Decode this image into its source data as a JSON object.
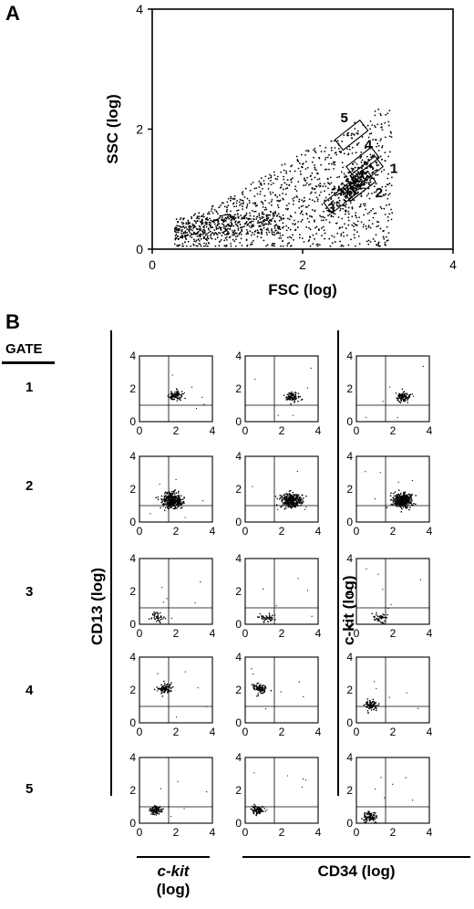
{
  "panel_a_label": "A",
  "panel_b_label": "B",
  "gate_header": "GATE",
  "gates": [
    "1",
    "2",
    "3",
    "4",
    "5"
  ],
  "ylabel_left": "CD13 (log)",
  "ylabel_right": "c-kit (log)",
  "xlabel_ckit_line1": "c-kit",
  "xlabel_ckit_line2": "(log)",
  "xlabel_cd34": "CD34 (log)",
  "chart_data": [
    {
      "type": "scatter",
      "panel": "A",
      "xlabel": "FSC (log)",
      "ylabel": "SSC (log)",
      "xlim": [
        0,
        4
      ],
      "ylim": [
        0,
        4
      ],
      "xticks": [
        "0",
        "2",
        "4"
      ],
      "yticks": [
        "0",
        "2",
        "4"
      ],
      "gate_labels": [
        "1",
        "2",
        "3",
        "4",
        "5"
      ],
      "gates": [
        {
          "label": "1",
          "center": [
            2.85,
            1.3
          ]
        },
        {
          "label": "2",
          "center": [
            2.75,
            1.05
          ]
        },
        {
          "label": "3",
          "center": [
            2.5,
            0.85
          ]
        },
        {
          "label": "4",
          "center": [
            2.8,
            1.45
          ]
        },
        {
          "label": "5",
          "center": [
            2.65,
            1.9
          ]
        }
      ]
    },
    {
      "type": "scatter",
      "panel": "B",
      "xlim": [
        0,
        4
      ],
      "ylim": [
        0,
        4
      ],
      "tick_labels": [
        "0",
        "2",
        "4"
      ],
      "quadrant_lines": {
        "x": 1.6,
        "y": 1.0
      },
      "columns": [
        "CD13 vs c-kit",
        "CD13 vs CD34",
        "c-kit vs CD34"
      ],
      "populations": [
        [
          {
            "x": 2.0,
            "y": 1.6
          },
          {
            "x": 2.6,
            "y": 1.5
          },
          {
            "x": 2.6,
            "y": 1.5
          }
        ],
        [
          {
            "x": 1.8,
            "y": 1.3
          },
          {
            "x": 2.5,
            "y": 1.3
          },
          {
            "x": 2.5,
            "y": 1.3
          }
        ],
        [
          {
            "x": 1.0,
            "y": 0.4
          },
          {
            "x": 1.2,
            "y": 0.4
          },
          {
            "x": 1.3,
            "y": 0.4
          }
        ],
        [
          {
            "x": 1.4,
            "y": 2.1
          },
          {
            "x": 0.8,
            "y": 2.1
          },
          {
            "x": 0.8,
            "y": 1.1
          }
        ],
        [
          {
            "x": 0.9,
            "y": 0.8
          },
          {
            "x": 0.7,
            "y": 0.8
          },
          {
            "x": 0.7,
            "y": 0.4
          }
        ]
      ]
    }
  ]
}
